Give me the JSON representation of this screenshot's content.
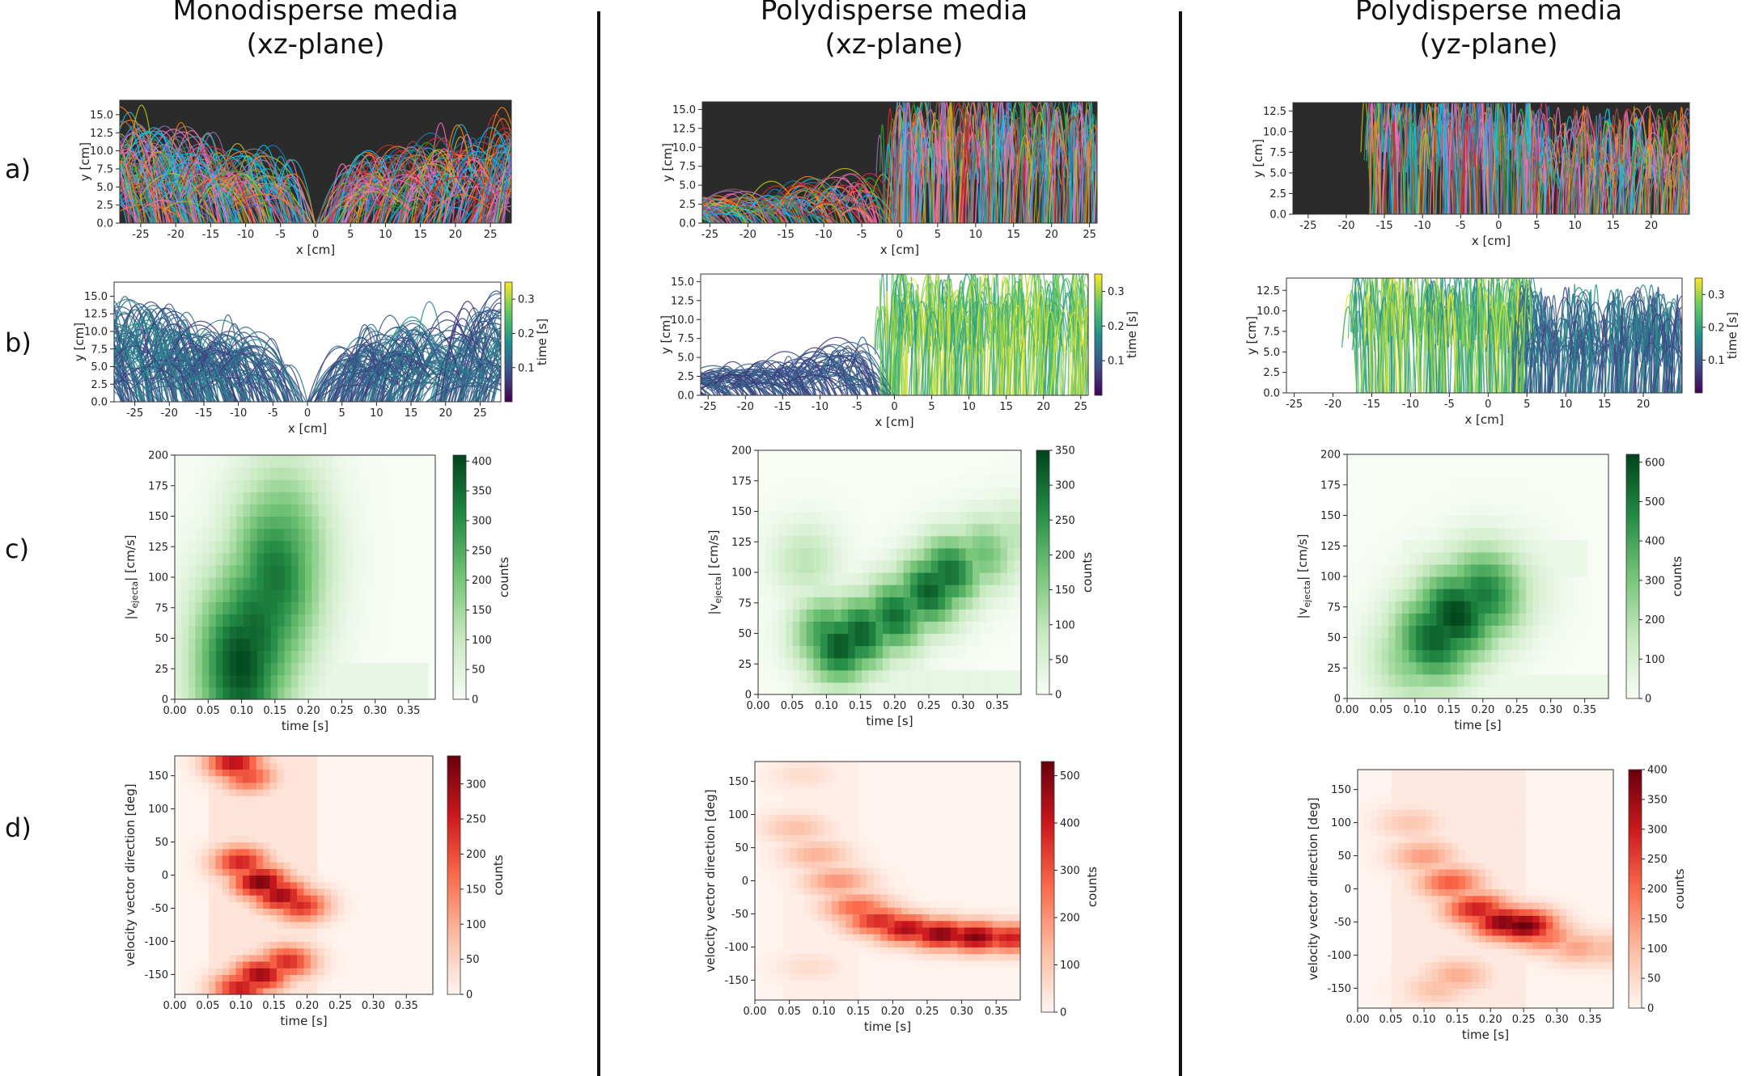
{
  "columns": [
    {
      "title_line1": "Monodisperse media",
      "title_line2": "(xz-plane)"
    },
    {
      "title_line1": "Polydisperse media",
      "title_line2": "(xz-plane)"
    },
    {
      "title_line1": "Polydisperse media",
      "title_line2": "(yz-plane)"
    }
  ],
  "rows": [
    "a)",
    "b)",
    "c)",
    "d)"
  ],
  "colors": {
    "traj_bg": "#2b2b2b",
    "viridis": [
      "#440154",
      "#3b528b",
      "#21918c",
      "#5ec962",
      "#fde725"
    ],
    "greens": [
      "#f7fcf5",
      "#c7e9c0",
      "#74c476",
      "#238b45",
      "#00441b"
    ],
    "reds": [
      "#fff5f0",
      "#fcbba1",
      "#fb6a4a",
      "#cb181d",
      "#67000d"
    ]
  },
  "chart_data": [
    {
      "id": "a1",
      "type": "trajectories",
      "xlabel": "x [cm]",
      "ylabel": "y [cm]",
      "xlim": [
        -28,
        28
      ],
      "ylim": [
        0,
        17
      ],
      "xticks": [
        -25,
        -20,
        -15,
        -10,
        -5,
        0,
        5,
        10,
        15,
        20,
        25
      ],
      "yticks": [
        0.0,
        2.5,
        5.0,
        7.5,
        10.0,
        12.5,
        15.0
      ]
    },
    {
      "id": "a2",
      "type": "trajectories",
      "xlabel": "x [cm]",
      "ylabel": "y [cm]",
      "xlim": [
        -26,
        26
      ],
      "ylim": [
        0,
        16
      ],
      "xticks": [
        -25,
        -20,
        -15,
        -10,
        -5,
        0,
        5,
        10,
        15,
        20,
        25
      ],
      "yticks": [
        0.0,
        2.5,
        5.0,
        7.5,
        10.0,
        12.5,
        15.0
      ]
    },
    {
      "id": "a3",
      "type": "trajectories",
      "xlabel": "x [cm]",
      "ylabel": "y [cm]",
      "xlim": [
        -27,
        25
      ],
      "ylim": [
        0,
        13.5
      ],
      "xticks": [
        -25,
        -20,
        -15,
        -10,
        -5,
        0,
        5,
        10,
        15,
        20
      ],
      "yticks": [
        0.0,
        2.5,
        5.0,
        7.5,
        10.0,
        12.5
      ]
    },
    {
      "id": "b1",
      "type": "trajectories",
      "xlabel": "x [cm]",
      "ylabel": "y [cm]",
      "xlim": [
        -28,
        28
      ],
      "ylim": [
        0,
        17
      ],
      "xticks": [
        -25,
        -20,
        -15,
        -10,
        -5,
        0,
        5,
        10,
        15,
        20,
        25
      ],
      "yticks": [
        0.0,
        2.5,
        5.0,
        7.5,
        10.0,
        12.5,
        15.0
      ],
      "colorbar_label": "time [s]",
      "colorbar_ticks": [
        0.1,
        0.2,
        0.3
      ],
      "colorbar_range": [
        0.0,
        0.35
      ]
    },
    {
      "id": "b2",
      "type": "trajectories",
      "xlabel": "x [cm]",
      "ylabel": "y [cm]",
      "xlim": [
        -26,
        26
      ],
      "ylim": [
        0,
        16
      ],
      "xticks": [
        -25,
        -20,
        -15,
        -10,
        -5,
        0,
        5,
        10,
        15,
        20,
        25
      ],
      "yticks": [
        0.0,
        2.5,
        5.0,
        7.5,
        10.0,
        12.5,
        15.0
      ],
      "colorbar_label": "time [s]",
      "colorbar_ticks": [
        0.1,
        0.2,
        0.3
      ],
      "colorbar_range": [
        0.0,
        0.35
      ]
    },
    {
      "id": "b3",
      "type": "trajectories",
      "xlabel": "x [cm]",
      "ylabel": "y [cm]",
      "xlim": [
        -26,
        25
      ],
      "ylim": [
        0,
        14
      ],
      "xticks": [
        -25,
        -20,
        -15,
        -10,
        -5,
        0,
        5,
        10,
        15,
        20
      ],
      "yticks": [
        0.0,
        2.5,
        5.0,
        7.5,
        10.0,
        12.5
      ],
      "colorbar_label": "time [s]",
      "colorbar_ticks": [
        0.1,
        0.2,
        0.3
      ],
      "colorbar_range": [
        0.0,
        0.35
      ]
    },
    {
      "id": "c1",
      "type": "heatmap",
      "cmap": "greens",
      "xlabel": "time [s]",
      "ylabel": "|v",
      "ylabel_sub": "ejecta",
      "ylabel_tail": "| [cm/s]",
      "xlim": [
        0,
        0.39
      ],
      "ylim": [
        0,
        200
      ],
      "xticks": [
        0.0,
        0.05,
        0.1,
        0.15,
        0.2,
        0.25,
        0.3,
        0.35
      ],
      "yticks": [
        0,
        25,
        50,
        75,
        100,
        125,
        150,
        175,
        200
      ],
      "colorbar_label": "counts",
      "colorbar_ticks": [
        0,
        50,
        100,
        150,
        200,
        250,
        300,
        350,
        400
      ],
      "colorbar_range": [
        0,
        410
      ],
      "ridge": [
        [
          0.1,
          30,
          400
        ],
        [
          0.12,
          55,
          360
        ],
        [
          0.14,
          80,
          330
        ],
        [
          0.15,
          100,
          340
        ],
        [
          0.16,
          115,
          280
        ]
      ],
      "ridge_width": [
        0.05,
        55
      ],
      "background_band": [
        [
          0.2,
          0.38,
          0,
          25,
          30
        ]
      ]
    },
    {
      "id": "c2",
      "type": "heatmap",
      "cmap": "greens",
      "xlabel": "time [s]",
      "ylabel": "|v",
      "ylabel_sub": "ejecta",
      "ylabel_tail": "| [cm/s]",
      "xlim": [
        0,
        0.385
      ],
      "ylim": [
        0,
        200
      ],
      "xticks": [
        0.0,
        0.05,
        0.1,
        0.15,
        0.2,
        0.25,
        0.3,
        0.35
      ],
      "yticks": [
        0,
        25,
        50,
        75,
        100,
        125,
        150,
        175,
        200
      ],
      "colorbar_label": "counts",
      "colorbar_ticks": [
        0,
        50,
        100,
        150,
        200,
        250,
        300,
        350
      ],
      "colorbar_range": [
        0,
        350
      ],
      "ridge": [
        [
          0.07,
          110,
          100
        ],
        [
          0.1,
          50,
          250
        ],
        [
          0.12,
          40,
          330
        ],
        [
          0.15,
          50,
          320
        ],
        [
          0.2,
          65,
          300
        ],
        [
          0.25,
          85,
          320
        ],
        [
          0.28,
          100,
          300
        ],
        [
          0.33,
          115,
          180
        ],
        [
          0.37,
          128,
          100
        ]
      ],
      "ridge_width": [
        0.035,
        22
      ],
      "background_band": [
        [
          0.05,
          0.38,
          5,
          15,
          30
        ]
      ]
    },
    {
      "id": "c3",
      "type": "heatmap",
      "cmap": "greens",
      "xlabel": "time [s]",
      "ylabel": "|v",
      "ylabel_sub": "ejecta",
      "ylabel_tail": "| [cm/s]",
      "xlim": [
        0,
        0.385
      ],
      "ylim": [
        0,
        200
      ],
      "xticks": [
        0.0,
        0.05,
        0.1,
        0.15,
        0.2,
        0.25,
        0.3,
        0.35
      ],
      "yticks": [
        0,
        25,
        50,
        75,
        100,
        125,
        150,
        175,
        200
      ],
      "colorbar_label": "counts",
      "colorbar_ticks": [
        0,
        100,
        200,
        300,
        400,
        500,
        600
      ],
      "colorbar_range": [
        0,
        620
      ],
      "ridge": [
        [
          0.1,
          35,
          300
        ],
        [
          0.13,
          50,
          560
        ],
        [
          0.16,
          68,
          620
        ],
        [
          0.2,
          85,
          500
        ],
        [
          0.23,
          90,
          200
        ]
      ],
      "ridge_width": [
        0.045,
        28
      ],
      "background_band": [
        [
          0.05,
          0.38,
          5,
          18,
          40
        ],
        [
          0.08,
          0.35,
          100,
          125,
          40
        ]
      ]
    },
    {
      "id": "d1",
      "type": "heatmap",
      "cmap": "reds",
      "xlabel": "time [s]",
      "ylabel": "velocity vector direction [deg]",
      "xlim": [
        0,
        0.39
      ],
      "ylim": [
        -180,
        180
      ],
      "xticks": [
        0.0,
        0.05,
        0.1,
        0.15,
        0.2,
        0.25,
        0.3,
        0.35
      ],
      "yticks": [
        -150,
        -100,
        -50,
        0,
        50,
        100,
        150
      ],
      "colorbar_label": "counts",
      "colorbar_ticks": [
        0,
        50,
        100,
        150,
        200,
        250,
        300
      ],
      "colorbar_range": [
        0,
        340
      ],
      "ridge": [
        [
          0.09,
          170,
          280
        ],
        [
          0.11,
          150,
          200
        ],
        [
          0.1,
          20,
          250
        ],
        [
          0.13,
          -10,
          330
        ],
        [
          0.16,
          -30,
          300
        ],
        [
          0.19,
          -45,
          240
        ],
        [
          0.1,
          -170,
          260
        ],
        [
          0.13,
          -150,
          300
        ],
        [
          0.17,
          -130,
          240
        ]
      ],
      "ridge_width": [
        0.03,
        18
      ],
      "background_band": [
        [
          0.05,
          0.22,
          -180,
          180,
          25
        ]
      ]
    },
    {
      "id": "d2",
      "type": "heatmap",
      "cmap": "reds",
      "xlabel": "time [s]",
      "ylabel": "velocity vector direction [deg]",
      "xlim": [
        0,
        0.385
      ],
      "ylim": [
        -180,
        180
      ],
      "xticks": [
        0.0,
        0.05,
        0.1,
        0.15,
        0.2,
        0.25,
        0.3,
        0.35
      ],
      "yticks": [
        -150,
        -100,
        -50,
        0,
        50,
        100,
        150
      ],
      "colorbar_label": "counts",
      "colorbar_ticks": [
        0,
        100,
        200,
        300,
        400,
        500
      ],
      "colorbar_range": [
        0,
        530
      ],
      "ridge": [
        [
          0.06,
          80,
          120
        ],
        [
          0.09,
          40,
          150
        ],
        [
          0.12,
          0,
          200
        ],
        [
          0.15,
          -40,
          280
        ],
        [
          0.18,
          -60,
          380
        ],
        [
          0.22,
          -72,
          450
        ],
        [
          0.27,
          -80,
          500
        ],
        [
          0.32,
          -84,
          500
        ],
        [
          0.37,
          -86,
          400
        ],
        [
          0.08,
          -130,
          60
        ],
        [
          0.07,
          160,
          60
        ]
      ],
      "ridge_width": [
        0.035,
        16
      ],
      "background_band": [
        [
          0.04,
          0.15,
          -180,
          180,
          15
        ]
      ]
    },
    {
      "id": "d3",
      "type": "heatmap",
      "cmap": "reds",
      "xlabel": "time [s]",
      "ylabel": "velocity vector direction [deg]",
      "xlim": [
        0,
        0.385
      ],
      "ylim": [
        -180,
        180
      ],
      "xticks": [
        0.0,
        0.05,
        0.1,
        0.15,
        0.2,
        0.25,
        0.3,
        0.35
      ],
      "yticks": [
        -150,
        -100,
        -50,
        0,
        50,
        100,
        150
      ],
      "colorbar_label": "counts",
      "colorbar_ticks": [
        0,
        50,
        100,
        150,
        200,
        250,
        300,
        350,
        400
      ],
      "colorbar_range": [
        0,
        400
      ],
      "ridge": [
        [
          0.08,
          100,
          80
        ],
        [
          0.1,
          50,
          140
        ],
        [
          0.14,
          10,
          220
        ],
        [
          0.18,
          -30,
          300
        ],
        [
          0.22,
          -50,
          380
        ],
        [
          0.25,
          -55,
          400
        ],
        [
          0.28,
          -70,
          200
        ],
        [
          0.33,
          -88,
          130
        ],
        [
          0.37,
          -90,
          100
        ],
        [
          0.15,
          -130,
          120
        ],
        [
          0.12,
          -150,
          90
        ]
      ],
      "ridge_width": [
        0.035,
        18
      ],
      "background_band": [
        [
          0.05,
          0.25,
          -180,
          180,
          20
        ]
      ]
    }
  ]
}
